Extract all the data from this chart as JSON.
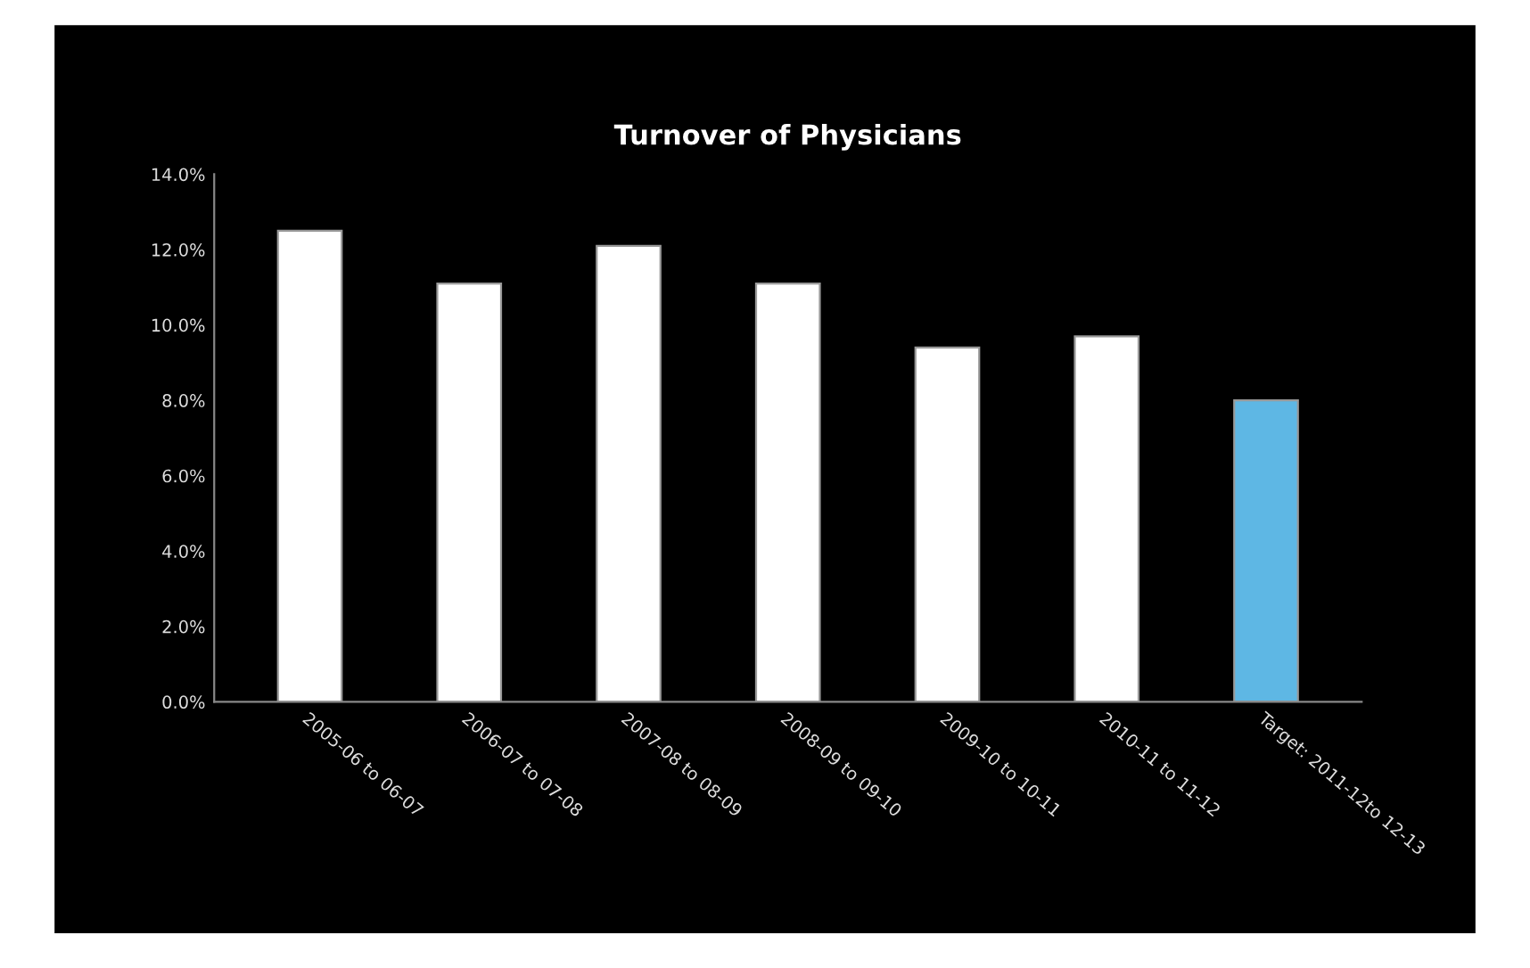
{
  "chart_data": {
    "type": "bar",
    "title": "Turnover of Physicians",
    "categories": [
      "2005-06 to 06-07",
      "2006-07 to 07-08",
      "2007-08 to 08-09",
      "2008-09 to 09-10",
      "2009-10 to 10-11",
      "2010-11 to 11-12",
      "Target: 2011-12to 12-13"
    ],
    "values": [
      12.5,
      11.1,
      12.1,
      11.1,
      9.4,
      9.7,
      8.0
    ],
    "colors": [
      "#ffffff",
      "#ffffff",
      "#ffffff",
      "#ffffff",
      "#ffffff",
      "#ffffff",
      "#5eb7e4"
    ],
    "ylim": [
      0,
      14
    ],
    "yticks": [
      {
        "value": 0,
        "label": "0.0%"
      },
      {
        "value": 2,
        "label": "2.0%"
      },
      {
        "value": 4,
        "label": "4.0%"
      },
      {
        "value": 6,
        "label": "6.0%"
      },
      {
        "value": 8,
        "label": "8.0%"
      },
      {
        "value": 10,
        "label": "10.0%"
      },
      {
        "value": 12,
        "label": "12.0%"
      },
      {
        "value": 14,
        "label": "14.0%"
      }
    ],
    "grid": false
  }
}
